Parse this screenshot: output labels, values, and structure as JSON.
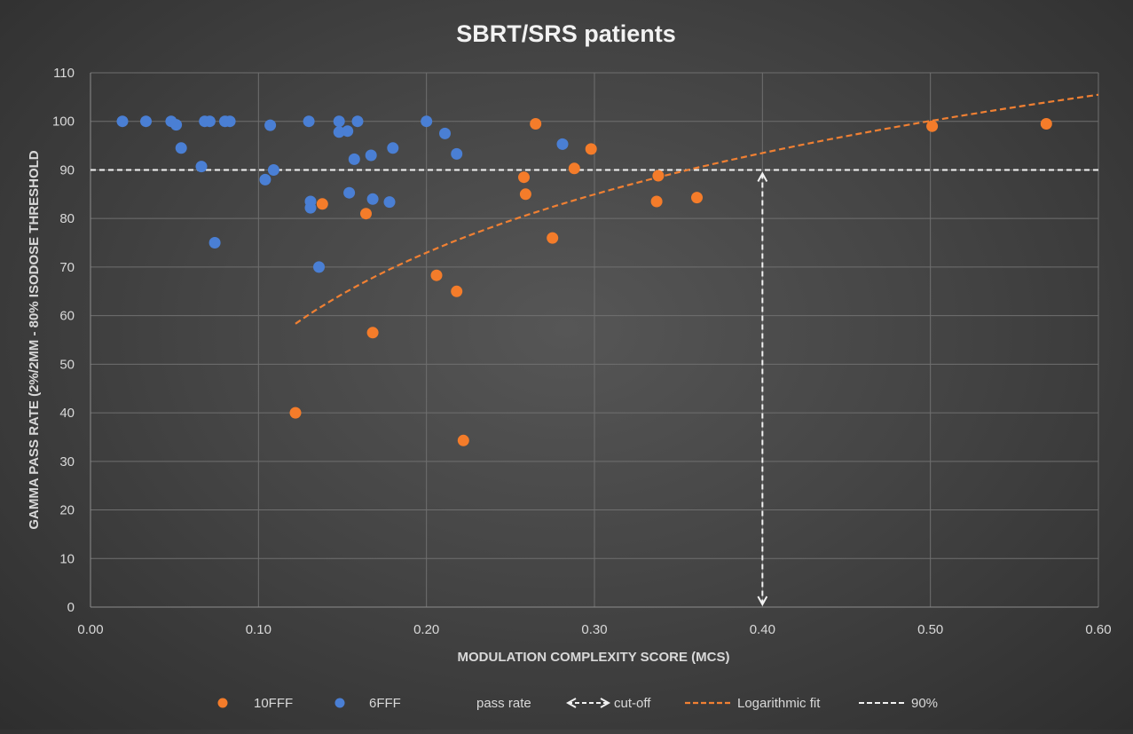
{
  "chart_data": {
    "type": "scatter",
    "title": "SBRT/SRS patients",
    "xlabel": "MODULATION COMPLEXITY SCORE (MCS)",
    "ylabel": "GAMMA PASS RATE (2%/2MM - 80%  ISODOSE THRESHOLD",
    "xlim": [
      0,
      0.6
    ],
    "ylim": [
      0,
      110
    ],
    "x_ticks": [
      "0.00",
      "0.10",
      "0.20",
      "0.30",
      "0.40",
      "0.50",
      "0.60"
    ],
    "y_ticks": [
      "0",
      "10",
      "20",
      "30",
      "40",
      "50",
      "60",
      "70",
      "80",
      "90",
      "100",
      "110"
    ],
    "grid": true,
    "colors": {
      "10FFF": "#f47c2a",
      "6FFF": "#4a7fd4",
      "cutoff": "#f2f2f2",
      "fit": "#f08033",
      "threshold": "#f2f2f2"
    },
    "series": [
      {
        "name": "10FFF",
        "points": [
          [
            0.122,
            40
          ],
          [
            0.138,
            83
          ],
          [
            0.164,
            81
          ],
          [
            0.168,
            56.5
          ],
          [
            0.206,
            68.3
          ],
          [
            0.218,
            65
          ],
          [
            0.222,
            34.3
          ],
          [
            0.258,
            88.5
          ],
          [
            0.259,
            85
          ],
          [
            0.265,
            99.5
          ],
          [
            0.275,
            76
          ],
          [
            0.288,
            90.3
          ],
          [
            0.298,
            94.3
          ],
          [
            0.337,
            83.5
          ],
          [
            0.338,
            88.8
          ],
          [
            0.361,
            84.3
          ],
          [
            0.501,
            99
          ],
          [
            0.569,
            99.5
          ]
        ]
      },
      {
        "name": "6FFF",
        "points": [
          [
            0.019,
            100
          ],
          [
            0.033,
            100
          ],
          [
            0.048,
            100
          ],
          [
            0.051,
            99.3
          ],
          [
            0.054,
            94.5
          ],
          [
            0.066,
            90.7
          ],
          [
            0.068,
            100
          ],
          [
            0.071,
            100
          ],
          [
            0.074,
            75
          ],
          [
            0.08,
            100
          ],
          [
            0.083,
            100
          ],
          [
            0.104,
            88
          ],
          [
            0.107,
            99.2
          ],
          [
            0.109,
            90
          ],
          [
            0.13,
            100
          ],
          [
            0.131,
            83.5
          ],
          [
            0.131,
            82.2
          ],
          [
            0.136,
            70
          ],
          [
            0.148,
            100
          ],
          [
            0.148,
            97.8
          ],
          [
            0.153,
            98
          ],
          [
            0.154,
            85.3
          ],
          [
            0.157,
            92.2
          ],
          [
            0.159,
            100
          ],
          [
            0.167,
            93
          ],
          [
            0.168,
            84
          ],
          [
            0.178,
            83.4
          ],
          [
            0.18,
            94.5
          ],
          [
            0.2,
            100
          ],
          [
            0.211,
            97.5
          ],
          [
            0.218,
            93.3
          ],
          [
            0.281,
            95.3
          ]
        ]
      }
    ],
    "fit": {
      "name": "Logarithmic fit",
      "x_from": 0.122,
      "x_to": 0.6,
      "a": 120.6,
      "b": 29.6
    },
    "threshold": {
      "name": "90%",
      "y": 90
    },
    "cutoff": {
      "name": "cut-off",
      "x": 0.4
    },
    "legend": {
      "placement": "bottom",
      "items": [
        "10FFF",
        "6FFF",
        "pass rate",
        "cut-off",
        "Logarithmic fit",
        "90%"
      ]
    }
  }
}
